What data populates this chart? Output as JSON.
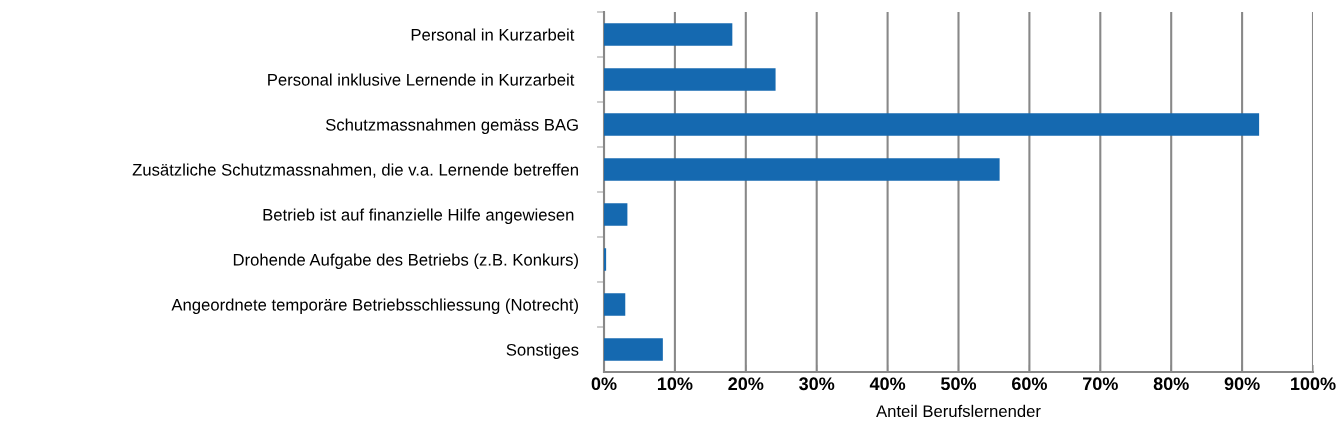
{
  "chart_data": {
    "type": "bar",
    "orientation": "horizontal",
    "xlabel": "Anteil Berufslernender",
    "categories": [
      "Personal in Kurzarbeit ",
      "Personal inklusive Lernende in Kurzarbeit ",
      "Schutzmassnahmen gemäss BAG",
      "Zusätzliche Schutzmassnahmen, die v.a. Lernende betreffen",
      "Betrieb ist auf finanzielle Hilfe angewiesen ",
      "Drohende Aufgabe des Betriebs (z.B. Konkurs)",
      "Angeordnete temporäre Betriebsschliessung (Notrecht)",
      "Sonstiges"
    ],
    "values": [
      18.1,
      24.2,
      92.4,
      55.8,
      3.3,
      0.3,
      3.0,
      8.3
    ],
    "color": "#1569b0",
    "xlim": [
      0,
      100
    ],
    "xticks": [
      {
        "value": 0,
        "label": "0%"
      },
      {
        "value": 10,
        "label": "10%"
      },
      {
        "value": 20,
        "label": "20%"
      },
      {
        "value": 30,
        "label": "30%"
      },
      {
        "value": 40,
        "label": "40%"
      },
      {
        "value": 50,
        "label": "50%"
      },
      {
        "value": 60,
        "label": "60%"
      },
      {
        "value": 70,
        "label": "70%"
      },
      {
        "value": 80,
        "label": "80%"
      },
      {
        "value": 90,
        "label": "90%"
      },
      {
        "value": 100,
        "label": "100%"
      }
    ],
    "grid": "x"
  }
}
